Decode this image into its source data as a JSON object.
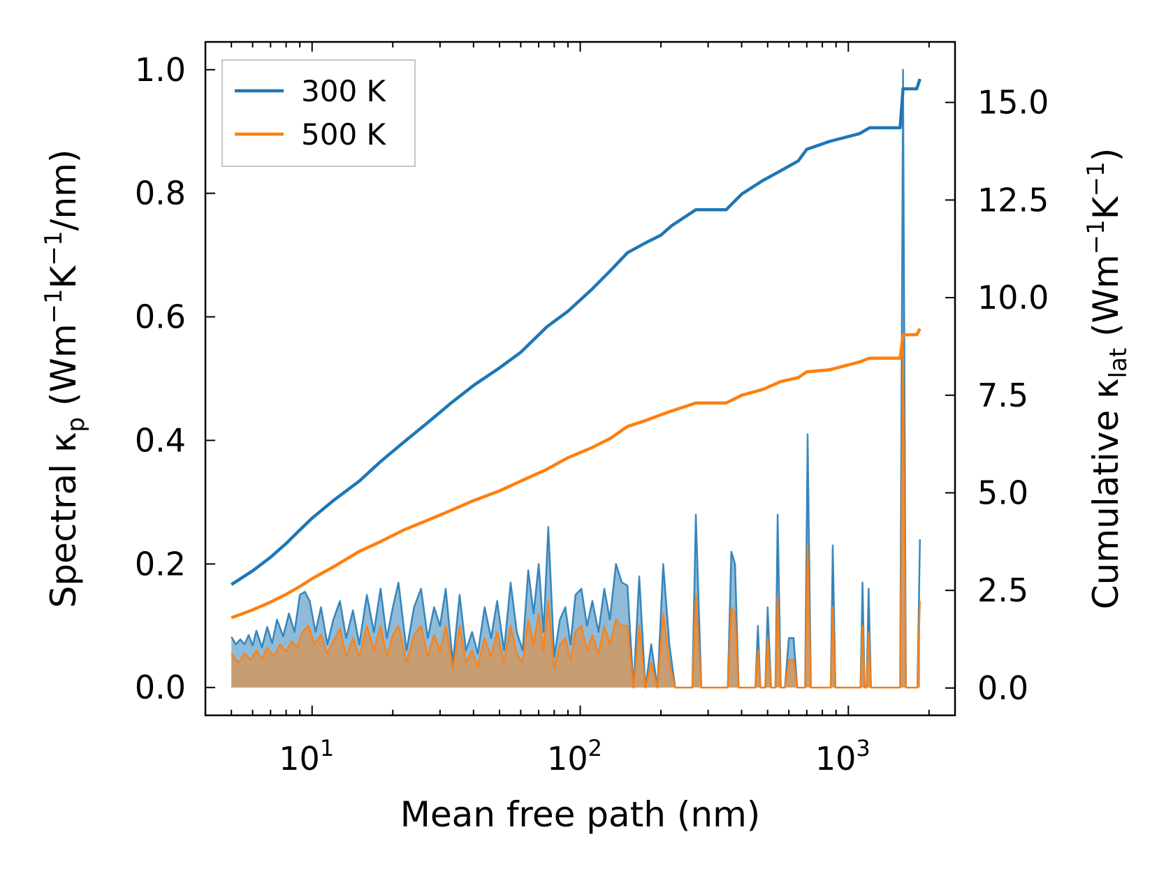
{
  "chart_data": {
    "type": "line",
    "xscale": "log",
    "xlabel": "Mean free path (nm)",
    "xlim": [
      4,
      2500
    ],
    "x_ticks": [
      {
        "value": 10,
        "base": "10",
        "exp": "1"
      },
      {
        "value": 100,
        "base": "10",
        "exp": "2"
      },
      {
        "value": 1000,
        "base": "10",
        "exp": "3"
      }
    ],
    "left_axis": {
      "label_prefix": "Spectral κ",
      "label_sub": "p",
      "label_units_open": " (Wm",
      "label_sup1": "−1",
      "label_mid": "K",
      "label_sup2": "−1",
      "label_close": "/nm)",
      "ylim": [
        -0.045,
        1.045
      ],
      "ticks": [
        "0.0",
        "0.2",
        "0.4",
        "0.6",
        "0.8",
        "1.0"
      ],
      "tick_values": [
        0,
        0.2,
        0.4,
        0.6,
        0.8,
        1.0
      ]
    },
    "right_axis": {
      "label_prefix": "Cumulative κ",
      "label_sub": "lat",
      "label_units_open": " (Wm",
      "label_sup1": "−1",
      "label_mid": "K",
      "label_sup2": "−1",
      "label_close": ")",
      "ylim": [
        -0.7,
        16.55
      ],
      "ticks": [
        "0.0",
        "2.5",
        "5.0",
        "7.5",
        "10.0",
        "12.5",
        "15.0"
      ],
      "tick_values": [
        0,
        2.5,
        5,
        7.5,
        10,
        12.5,
        15
      ]
    },
    "legend": {
      "position": "top-left",
      "entries": [
        "300 K",
        "500 K"
      ]
    },
    "series": [
      {
        "name": "300 K",
        "color": "#1f77b4",
        "cumulative": [
          [
            5,
            2.65
          ],
          [
            6,
            3.0
          ],
          [
            7,
            3.35
          ],
          [
            8,
            3.7
          ],
          [
            9,
            4.05
          ],
          [
            10,
            4.35
          ],
          [
            12,
            4.8
          ],
          [
            15,
            5.3
          ],
          [
            18,
            5.8
          ],
          [
            22,
            6.3
          ],
          [
            27,
            6.8
          ],
          [
            33,
            7.3
          ],
          [
            40,
            7.75
          ],
          [
            50,
            8.2
          ],
          [
            60,
            8.6
          ],
          [
            75,
            9.25
          ],
          [
            90,
            9.65
          ],
          [
            110,
            10.2
          ],
          [
            130,
            10.7
          ],
          [
            150,
            11.15
          ],
          [
            175,
            11.4
          ],
          [
            200,
            11.6
          ],
          [
            220,
            11.85
          ],
          [
            270,
            12.25
          ],
          [
            350,
            12.25
          ],
          [
            400,
            12.65
          ],
          [
            480,
            13.0
          ],
          [
            560,
            13.25
          ],
          [
            650,
            13.5
          ],
          [
            700,
            13.8
          ],
          [
            850,
            14.0
          ],
          [
            1100,
            14.2
          ],
          [
            1200,
            14.35
          ],
          [
            1560,
            14.35
          ],
          [
            1600,
            15.35
          ],
          [
            1800,
            15.35
          ],
          [
            1850,
            15.6
          ]
        ],
        "spectral": [
          [
            5.0,
            0.082
          ],
          [
            5.2,
            0.07
          ],
          [
            5.4,
            0.078
          ],
          [
            5.6,
            0.07
          ],
          [
            5.8,
            0.085
          ],
          [
            6.0,
            0.068
          ],
          [
            6.2,
            0.092
          ],
          [
            6.5,
            0.065
          ],
          [
            6.8,
            0.098
          ],
          [
            7.1,
            0.072
          ],
          [
            7.4,
            0.11
          ],
          [
            7.8,
            0.083
          ],
          [
            8.2,
            0.12
          ],
          [
            8.6,
            0.09
          ],
          [
            9.0,
            0.15
          ],
          [
            9.4,
            0.155
          ],
          [
            9.8,
            0.14
          ],
          [
            10.3,
            0.09
          ],
          [
            10.8,
            0.13
          ],
          [
            11.4,
            0.07
          ],
          [
            12.0,
            0.11
          ],
          [
            12.7,
            0.14
          ],
          [
            13.4,
            0.08
          ],
          [
            14.2,
            0.125
          ],
          [
            15.0,
            0.07
          ],
          [
            16.0,
            0.15
          ],
          [
            17.0,
            0.09
          ],
          [
            18.0,
            0.16
          ],
          [
            19.0,
            0.08
          ],
          [
            20.0,
            0.13
          ],
          [
            21.0,
            0.17
          ],
          [
            22.5,
            0.06
          ],
          [
            24.0,
            0.13
          ],
          [
            25.5,
            0.16
          ],
          [
            27.0,
            0.08
          ],
          [
            28.5,
            0.13
          ],
          [
            30.0,
            0.1
          ],
          [
            31.5,
            0.16
          ],
          [
            33.5,
            0.04
          ],
          [
            35.5,
            0.15
          ],
          [
            37.5,
            0.06
          ],
          [
            39.5,
            0.09
          ],
          [
            41.5,
            0.055
          ],
          [
            44.0,
            0.13
          ],
          [
            46.5,
            0.08
          ],
          [
            49.0,
            0.14
          ],
          [
            52.0,
            0.06
          ],
          [
            55.0,
            0.17
          ],
          [
            58.0,
            0.09
          ],
          [
            61.0,
            0.06
          ],
          [
            64.0,
            0.19
          ],
          [
            67.0,
            0.12
          ],
          [
            70.0,
            0.2
          ],
          [
            73.0,
            0.09
          ],
          [
            76.0,
            0.26
          ],
          [
            80.0,
            0.05
          ],
          [
            84.0,
            0.11
          ],
          [
            88.0,
            0.13
          ],
          [
            92.0,
            0.07
          ],
          [
            96.0,
            0.15
          ],
          [
            101.0,
            0.16
          ],
          [
            106.0,
            0.1
          ],
          [
            111.0,
            0.14
          ],
          [
            117.0,
            0.09
          ],
          [
            123.0,
            0.16
          ],
          [
            129.0,
            0.11
          ],
          [
            136.0,
            0.2
          ],
          [
            143.0,
            0.17
          ],
          [
            150.0,
            0.165
          ],
          [
            158.0,
            0.0
          ],
          [
            166.0,
            0.18
          ],
          [
            175.0,
            0.0
          ],
          [
            184.0,
            0.07
          ],
          [
            194.0,
            0.0
          ],
          [
            204.0,
            0.2
          ],
          [
            215.0,
            0.07
          ],
          [
            226.0,
            0.0
          ],
          [
            262.0,
            0.0
          ],
          [
            270.0,
            0.28
          ],
          [
            283.0,
            0.0
          ],
          [
            355.0,
            0.0
          ],
          [
            366.0,
            0.22
          ],
          [
            378.0,
            0.2
          ],
          [
            390.0,
            0.0
          ],
          [
            450.0,
            0.0
          ],
          [
            460.0,
            0.1
          ],
          [
            470.0,
            0.0
          ],
          [
            490.0,
            0.0
          ],
          [
            500.0,
            0.13
          ],
          [
            515.0,
            0.0
          ],
          [
            535.0,
            0.0
          ],
          [
            545.0,
            0.28
          ],
          [
            560.0,
            0.0
          ],
          [
            580.0,
            0.0
          ],
          [
            600.0,
            0.08
          ],
          [
            625.0,
            0.08
          ],
          [
            645.0,
            0.0
          ],
          [
            690.0,
            0.0
          ],
          [
            705.0,
            0.41
          ],
          [
            725.0,
            0.0
          ],
          [
            860.0,
            0.0
          ],
          [
            875.0,
            0.23
          ],
          [
            895.0,
            0.0
          ],
          [
            1110.0,
            0.0
          ],
          [
            1130.0,
            0.17
          ],
          [
            1150.0,
            0.0
          ],
          [
            1170.0,
            0.0
          ],
          [
            1190.0,
            0.16
          ],
          [
            1215.0,
            0.0
          ],
          [
            1560.0,
            0.0
          ],
          [
            1600.0,
            1.0
          ],
          [
            1640.0,
            0.0
          ],
          [
            1810.0,
            0.0
          ],
          [
            1850.0,
            0.24
          ]
        ]
      },
      {
        "name": "500 K",
        "color": "#ff7f0e",
        "cumulative": [
          [
            5,
            1.8
          ],
          [
            6,
            2.0
          ],
          [
            7,
            2.2
          ],
          [
            8,
            2.4
          ],
          [
            9,
            2.6
          ],
          [
            10,
            2.8
          ],
          [
            12,
            3.1
          ],
          [
            15,
            3.5
          ],
          [
            18,
            3.75
          ],
          [
            22,
            4.05
          ],
          [
            27,
            4.3
          ],
          [
            33,
            4.55
          ],
          [
            40,
            4.8
          ],
          [
            50,
            5.05
          ],
          [
            60,
            5.3
          ],
          [
            75,
            5.6
          ],
          [
            90,
            5.9
          ],
          [
            110,
            6.15
          ],
          [
            130,
            6.4
          ],
          [
            150,
            6.7
          ],
          [
            175,
            6.85
          ],
          [
            200,
            7.0
          ],
          [
            220,
            7.1
          ],
          [
            270,
            7.3
          ],
          [
            350,
            7.3
          ],
          [
            400,
            7.5
          ],
          [
            480,
            7.65
          ],
          [
            560,
            7.85
          ],
          [
            650,
            7.95
          ],
          [
            700,
            8.1
          ],
          [
            850,
            8.15
          ],
          [
            1100,
            8.35
          ],
          [
            1200,
            8.45
          ],
          [
            1560,
            8.45
          ],
          [
            1600,
            9.05
          ],
          [
            1800,
            9.05
          ],
          [
            1850,
            9.2
          ]
        ],
        "spectral": [
          [
            5.0,
            0.055
          ],
          [
            5.3,
            0.04
          ],
          [
            5.6,
            0.055
          ],
          [
            5.9,
            0.045
          ],
          [
            6.2,
            0.06
          ],
          [
            6.5,
            0.045
          ],
          [
            6.8,
            0.065
          ],
          [
            7.2,
            0.05
          ],
          [
            7.6,
            0.07
          ],
          [
            8.0,
            0.058
          ],
          [
            8.4,
            0.075
          ],
          [
            8.8,
            0.065
          ],
          [
            9.2,
            0.09
          ],
          [
            9.7,
            0.1
          ],
          [
            10.2,
            0.07
          ],
          [
            10.8,
            0.085
          ],
          [
            11.4,
            0.055
          ],
          [
            12.0,
            0.075
          ],
          [
            12.7,
            0.095
          ],
          [
            13.4,
            0.05
          ],
          [
            14.2,
            0.08
          ],
          [
            15.0,
            0.05
          ],
          [
            16.0,
            0.1
          ],
          [
            17.0,
            0.06
          ],
          [
            18.0,
            0.1
          ],
          [
            19.0,
            0.05
          ],
          [
            20.0,
            0.085
          ],
          [
            21.0,
            0.1
          ],
          [
            22.5,
            0.04
          ],
          [
            24.0,
            0.085
          ],
          [
            25.5,
            0.1
          ],
          [
            27.0,
            0.05
          ],
          [
            28.5,
            0.085
          ],
          [
            30.0,
            0.06
          ],
          [
            31.5,
            0.1
          ],
          [
            33.5,
            0.03
          ],
          [
            35.5,
            0.1
          ],
          [
            37.5,
            0.04
          ],
          [
            39.5,
            0.06
          ],
          [
            41.5,
            0.035
          ],
          [
            44.0,
            0.08
          ],
          [
            46.5,
            0.05
          ],
          [
            49.0,
            0.09
          ],
          [
            52.0,
            0.04
          ],
          [
            55.0,
            0.1
          ],
          [
            58.0,
            0.055
          ],
          [
            61.0,
            0.04
          ],
          [
            64.0,
            0.11
          ],
          [
            67.0,
            0.07
          ],
          [
            70.0,
            0.12
          ],
          [
            73.0,
            0.06
          ],
          [
            76.0,
            0.14
          ],
          [
            80.0,
            0.03
          ],
          [
            84.0,
            0.07
          ],
          [
            88.0,
            0.08
          ],
          [
            92.0,
            0.045
          ],
          [
            96.0,
            0.09
          ],
          [
            101.0,
            0.1
          ],
          [
            106.0,
            0.06
          ],
          [
            111.0,
            0.085
          ],
          [
            117.0,
            0.055
          ],
          [
            123.0,
            0.1
          ],
          [
            129.0,
            0.07
          ],
          [
            136.0,
            0.11
          ],
          [
            143.0,
            0.1
          ],
          [
            150.0,
            0.1
          ],
          [
            158.0,
            0.0
          ],
          [
            166.0,
            0.1
          ],
          [
            175.0,
            0.0
          ],
          [
            184.0,
            0.04
          ],
          [
            194.0,
            0.0
          ],
          [
            204.0,
            0.12
          ],
          [
            215.0,
            0.04
          ],
          [
            226.0,
            0.0
          ],
          [
            262.0,
            0.0
          ],
          [
            270.0,
            0.15
          ],
          [
            283.0,
            0.0
          ],
          [
            355.0,
            0.0
          ],
          [
            366.0,
            0.13
          ],
          [
            378.0,
            0.12
          ],
          [
            390.0,
            0.0
          ],
          [
            450.0,
            0.0
          ],
          [
            460.0,
            0.06
          ],
          [
            470.0,
            0.0
          ],
          [
            490.0,
            0.0
          ],
          [
            500.0,
            0.08
          ],
          [
            515.0,
            0.0
          ],
          [
            535.0,
            0.0
          ],
          [
            545.0,
            0.15
          ],
          [
            560.0,
            0.0
          ],
          [
            580.0,
            0.0
          ],
          [
            600.0,
            0.045
          ],
          [
            625.0,
            0.045
          ],
          [
            645.0,
            0.0
          ],
          [
            690.0,
            0.0
          ],
          [
            705.0,
            0.23
          ],
          [
            725.0,
            0.0
          ],
          [
            860.0,
            0.0
          ],
          [
            875.0,
            0.13
          ],
          [
            895.0,
            0.0
          ],
          [
            1110.0,
            0.0
          ],
          [
            1130.0,
            0.1
          ],
          [
            1150.0,
            0.0
          ],
          [
            1170.0,
            0.0
          ],
          [
            1190.0,
            0.09
          ],
          [
            1215.0,
            0.0
          ],
          [
            1560.0,
            0.0
          ],
          [
            1600.0,
            0.55
          ],
          [
            1640.0,
            0.0
          ],
          [
            1810.0,
            0.0
          ],
          [
            1850.0,
            0.14
          ]
        ]
      }
    ]
  }
}
